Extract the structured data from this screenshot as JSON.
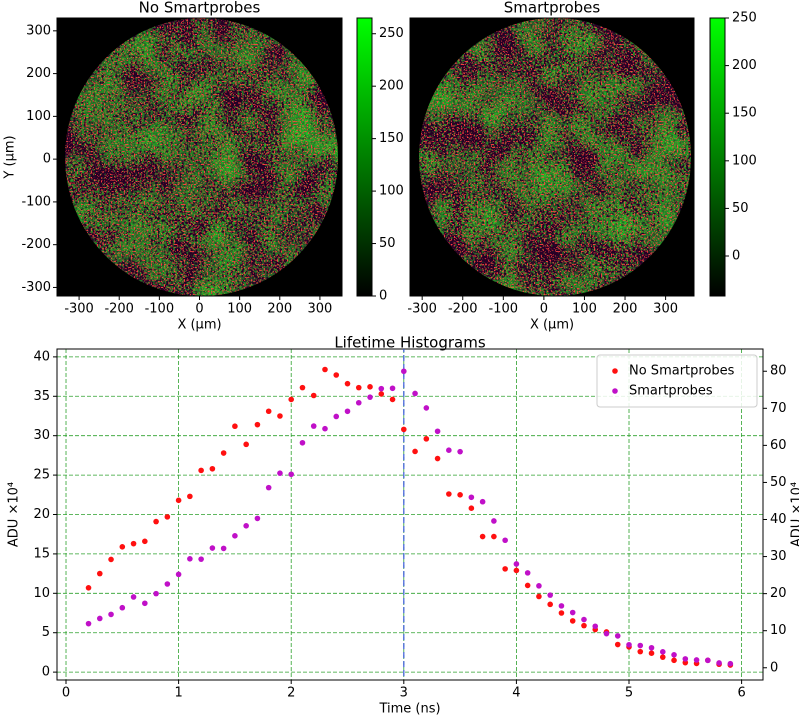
{
  "chart_data": [
    {
      "type": "image",
      "title": "No Smartprobes",
      "xlabel": "X (μm)",
      "ylabel": "Y (μm)",
      "xlim": [
        -355,
        355
      ],
      "ylim": [
        -320,
        330
      ],
      "xticks": [
        -300,
        -200,
        -100,
        0,
        100,
        200,
        300
      ],
      "yticks": [
        -300,
        -200,
        -100,
        0,
        100,
        200,
        300
      ],
      "colorbar": {
        "clim": [
          0,
          265
        ],
        "ticks": [
          0,
          50,
          100,
          150,
          200,
          250
        ],
        "colors": [
          "#000000",
          "#00ff00"
        ]
      }
    },
    {
      "type": "image",
      "title": "Smartprobes",
      "xlabel": "X (μm)",
      "xlim": [
        -330,
        370
      ],
      "xticks": [
        -300,
        -200,
        -100,
        0,
        100,
        200,
        300
      ],
      "colorbar": {
        "clim": [
          -42,
          250
        ],
        "ticks": [
          0,
          50,
          100,
          150,
          200,
          250
        ],
        "colors": [
          "#000000",
          "#00ff00"
        ]
      }
    },
    {
      "type": "scatter",
      "title": "Lifetime Histograms",
      "xlabel": "Time (ns)",
      "ylabel": "ADU ×10⁴",
      "y2label": "ADU ×10⁴",
      "xlim": [
        -0.08,
        6.19
      ],
      "ylim": [
        -1,
        41
      ],
      "y2lim": [
        -3.3,
        86
      ],
      "xticks": [
        0,
        1,
        2,
        3,
        4,
        5,
        6
      ],
      "yticks": [
        0,
        5,
        10,
        15,
        20,
        25,
        30,
        35,
        40
      ],
      "y2ticks": [
        0,
        10,
        20,
        30,
        40,
        50,
        60,
        70,
        80
      ],
      "grid": true,
      "grid_color": "#2ca02c",
      "legend": "upper right",
      "vline": 3,
      "vline_color": "#3b5bdb",
      "x": [
        0.2,
        0.3,
        0.4,
        0.5,
        0.6,
        0.7,
        0.8,
        0.9,
        1.0,
        1.1,
        1.2,
        1.3,
        1.4,
        1.5,
        1.6,
        1.7,
        1.8,
        1.9,
        2.0,
        2.1,
        2.2,
        2.3,
        2.4,
        2.5,
        2.6,
        2.7,
        2.8,
        2.9,
        3.0,
        3.1,
        3.2,
        3.3,
        3.4,
        3.5,
        3.6,
        3.7,
        3.8,
        3.9,
        4.0,
        4.1,
        4.2,
        4.3,
        4.4,
        4.5,
        4.6,
        4.7,
        4.8,
        4.9,
        5.0,
        5.1,
        5.2,
        5.3,
        5.4,
        5.5,
        5.6,
        5.7,
        5.8,
        5.9
      ],
      "series": [
        {
          "name": "No Smartprobes",
          "color": "#ff1010",
          "values": [
            10.7,
            12.5,
            14.3,
            15.9,
            16.3,
            16.6,
            19.1,
            19.7,
            21.8,
            22.3,
            25.6,
            25.8,
            27.8,
            31.2,
            28.9,
            31.4,
            33.1,
            32.5,
            34.6,
            36.1,
            35.1,
            38.4,
            37.7,
            36.6,
            36.1,
            36.2,
            35.3,
            34.6,
            30.8,
            28.0,
            29.6,
            27.1,
            22.6,
            22.5,
            20.8,
            17.2,
            17.2,
            13.1,
            12.9,
            11.0,
            9.6,
            8.6,
            7.5,
            6.5,
            5.9,
            5.4,
            5.1,
            3.5,
            3.2,
            2.6,
            2.4,
            1.9,
            1.5,
            1.2,
            1.1,
            1.5,
            1.0,
            0.9
          ]
        },
        {
          "name": "Smartprobes",
          "color": "#c010c8",
          "axis": "y2",
          "values": [
            11.9,
            13.3,
            14.4,
            16.2,
            19.1,
            17.4,
            20.0,
            22.6,
            25.2,
            29.4,
            29.3,
            32.3,
            32.2,
            35.6,
            38.3,
            40.3,
            48.6,
            52.5,
            52.2,
            60.7,
            65.2,
            64.5,
            67.8,
            69.2,
            71.5,
            73.0,
            75.3,
            75.4,
            80.0,
            74.0,
            70.1,
            63.8,
            58.7,
            58.3,
            46.0,
            44.8,
            39.6,
            34.4,
            28.0,
            25.6,
            22.1,
            19.6,
            16.7,
            14.9,
            13.0,
            11.2,
            9.2,
            8.6,
            6.2,
            6.0,
            5.4,
            4.3,
            3.5,
            2.4,
            2.1,
            2.0,
            1.3,
            1.1
          ]
        }
      ]
    }
  ]
}
